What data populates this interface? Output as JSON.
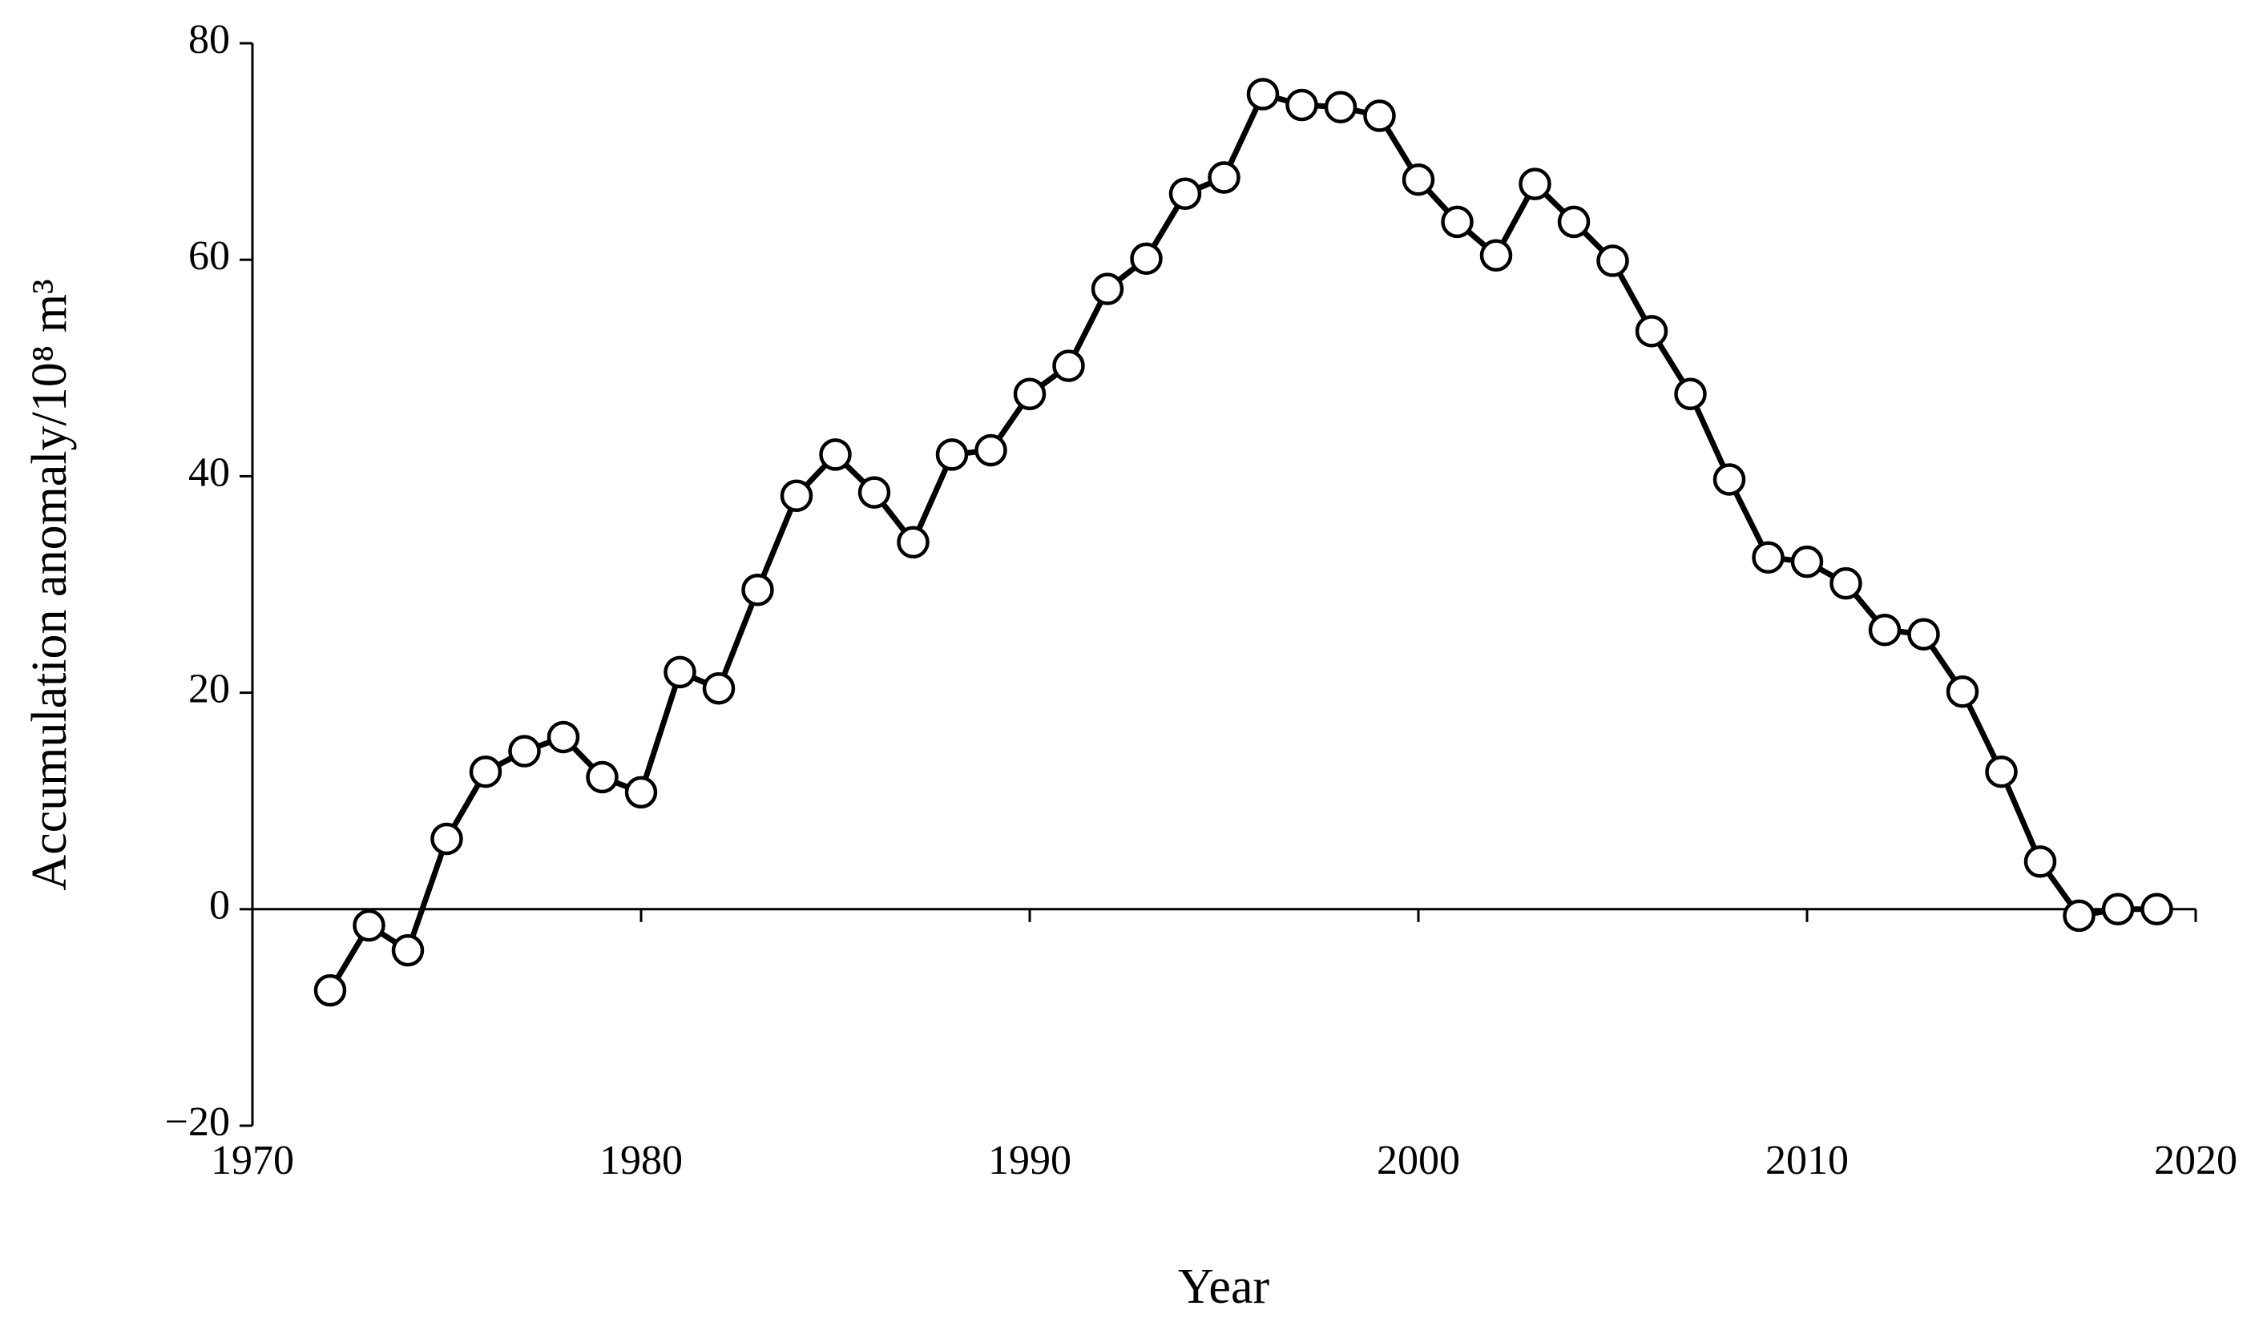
{
  "chart_data": {
    "type": "line",
    "x_label": "Year",
    "y_label": "Accumulation anomaly/10⁸ m³",
    "x": [
      1972,
      1973,
      1974,
      1975,
      1976,
      1977,
      1978,
      1979,
      1980,
      1981,
      1982,
      1983,
      1984,
      1985,
      1986,
      1987,
      1988,
      1989,
      1990,
      1991,
      1992,
      1993,
      1994,
      1995,
      1996,
      1997,
      1998,
      1999,
      2000,
      2001,
      2002,
      2003,
      2004,
      2005,
      2006,
      2007,
      2008,
      2009,
      2010,
      2011,
      2012,
      2013,
      2014,
      2015,
      2016,
      2017,
      2018,
      2019
    ],
    "series": [
      {
        "color": "#000000",
        "values": [
          -7.5,
          -1.5,
          -3.8,
          6.5,
          12.7,
          14.6,
          15.9,
          12.2,
          10.8,
          21.9,
          20.4,
          29.5,
          38.2,
          42.0,
          38.5,
          33.9,
          42.0,
          42.4,
          47.6,
          50.2,
          57.3,
          60.1,
          66.1,
          67.6,
          75.3,
          74.3,
          74.1,
          73.3,
          67.4,
          63.5,
          60.4,
          67.0,
          63.5,
          59.9,
          53.4,
          47.6,
          39.7,
          32.5,
          32.1,
          30.1,
          25.8,
          25.4,
          20.1,
          12.7,
          4.4,
          -0.6,
          0,
          0
        ]
      }
    ],
    "xlim": [
      1970,
      2020
    ],
    "xticks": [
      1970,
      1980,
      1990,
      2000,
      2010,
      2020
    ],
    "ylim": [
      -20,
      80
    ],
    "yticks": [
      {
        "value": -20,
        "label": "−20"
      },
      0,
      20,
      40,
      60,
      80
    ],
    "grid": false
  }
}
